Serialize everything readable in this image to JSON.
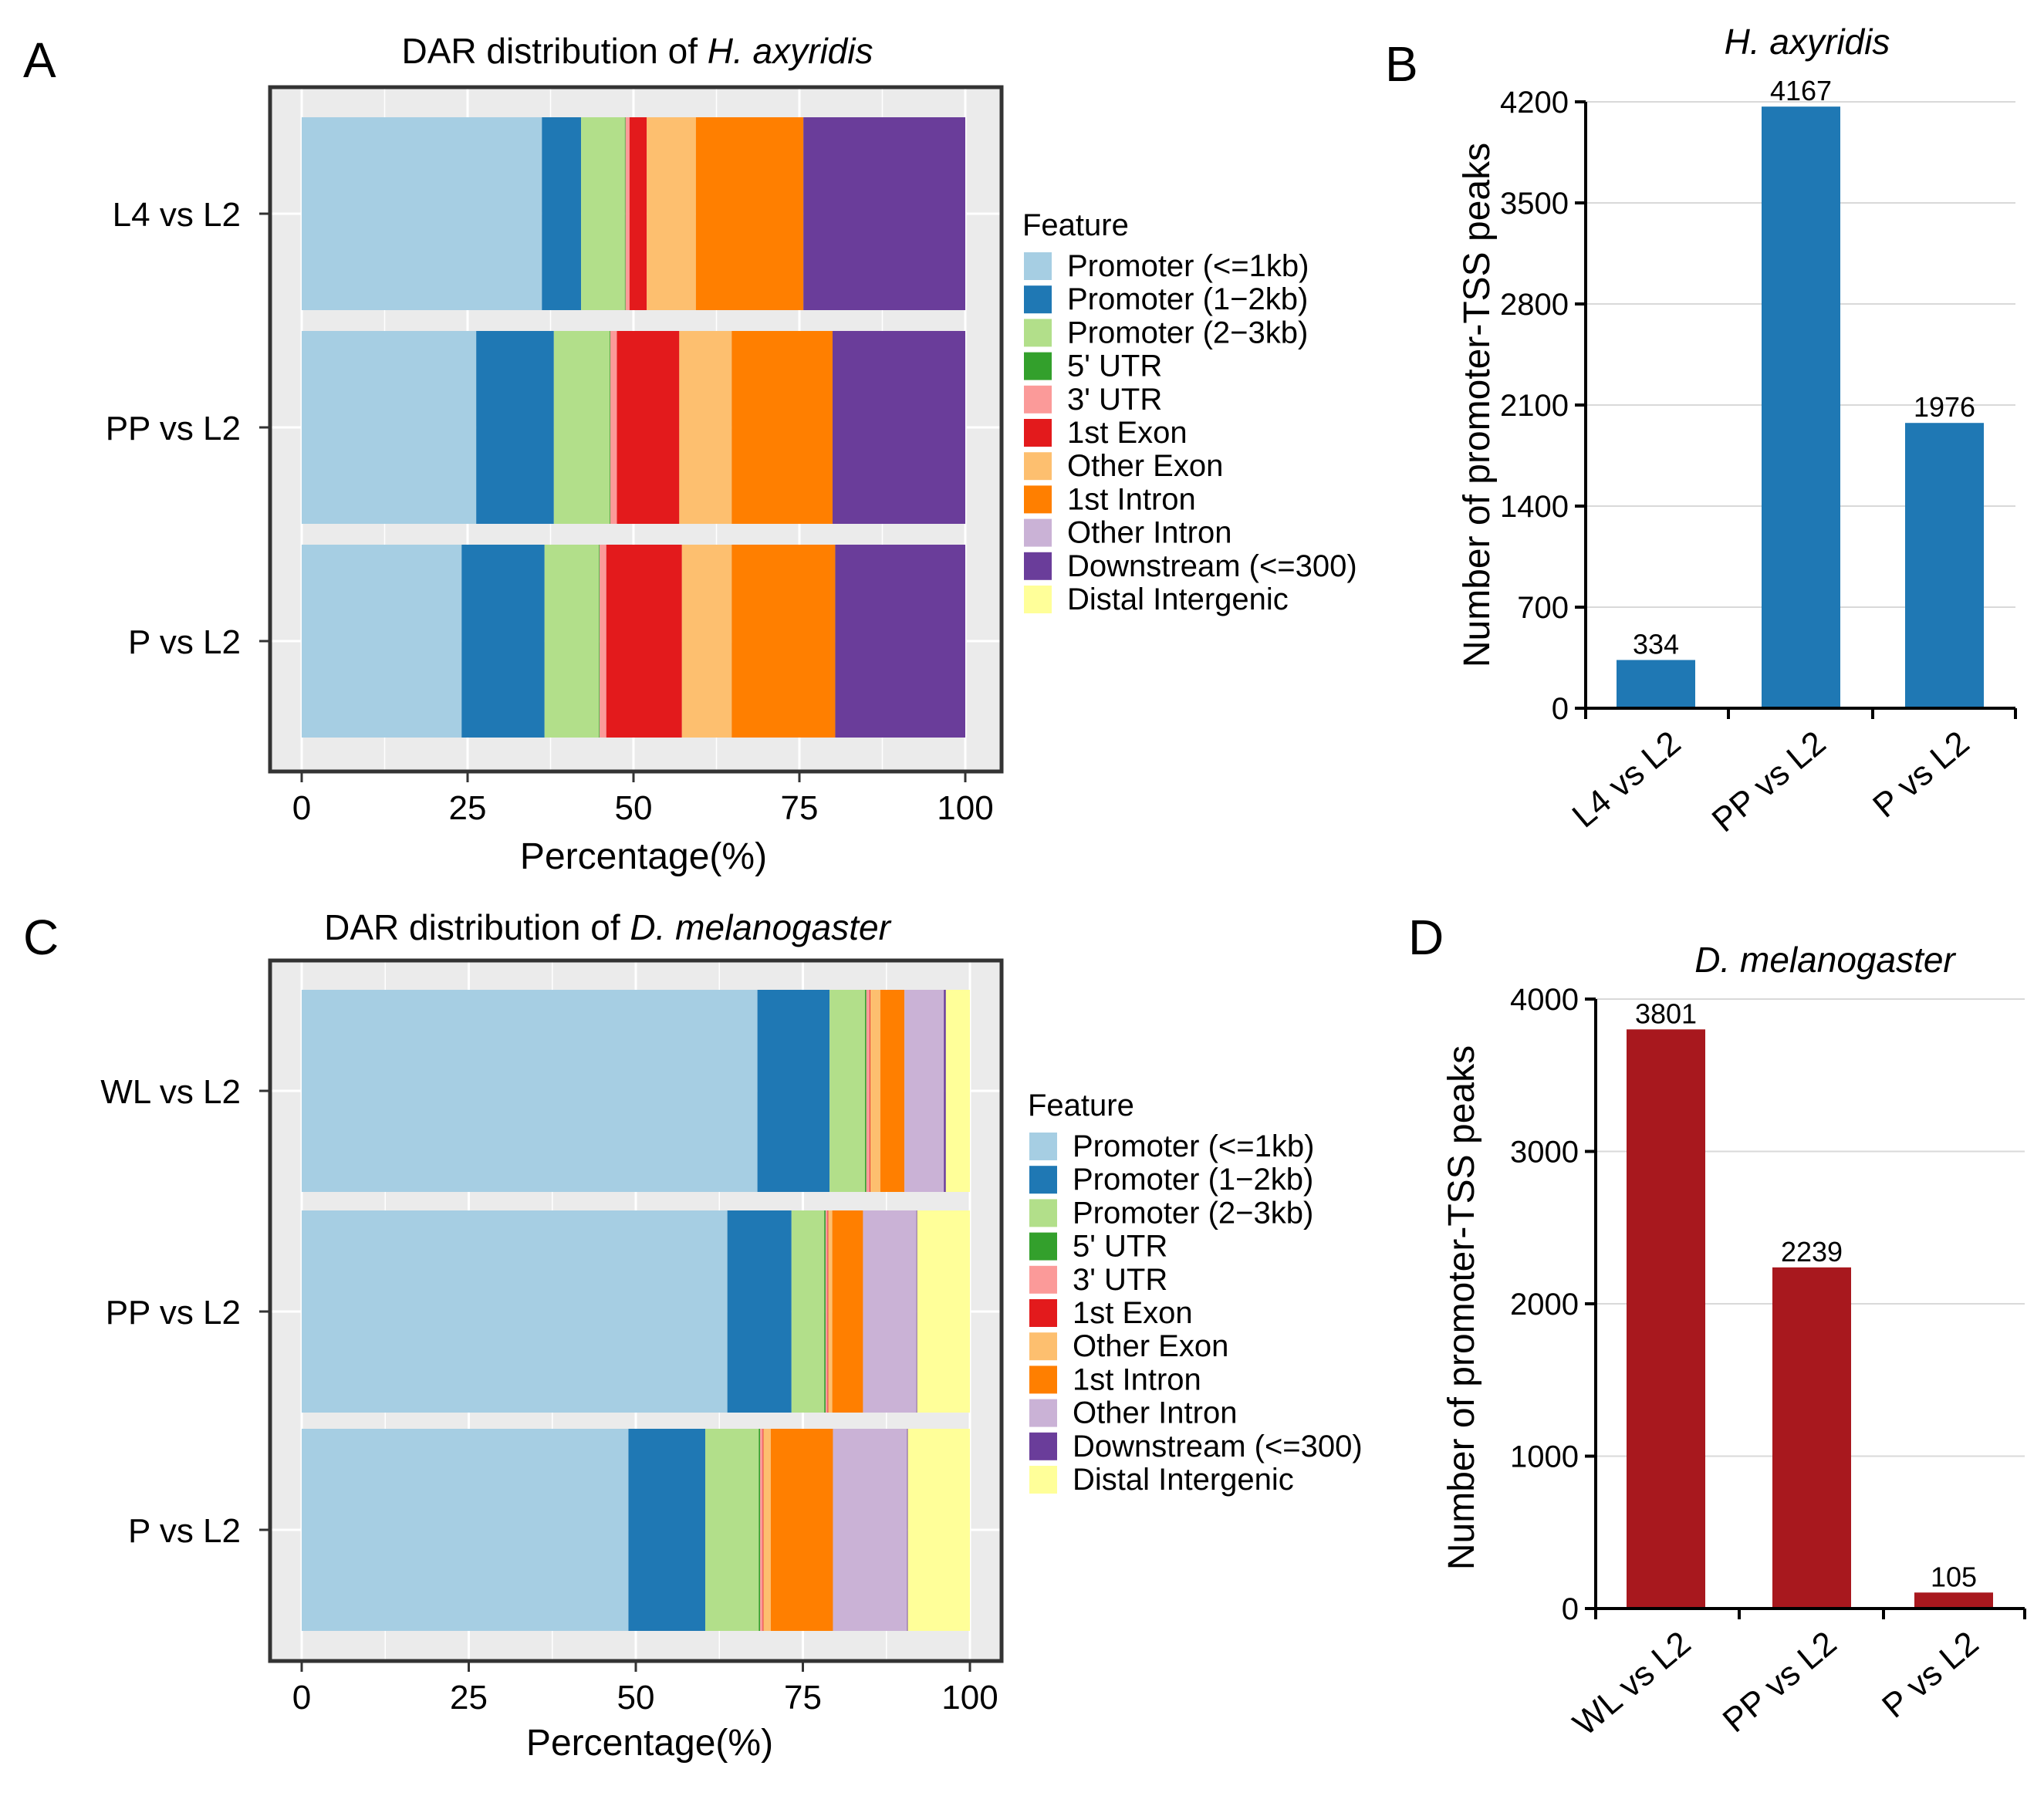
{
  "chart_data": [
    {
      "panel": "A",
      "type": "bar",
      "orientation": "horizontal",
      "stacked": true,
      "title_prefix": "DAR distribution of ",
      "title_species": "H. axyridis",
      "xlabel": "Percentage(%)",
      "xlim": [
        0,
        100
      ],
      "xticks": [
        0,
        25,
        50,
        75,
        100
      ],
      "categories": [
        "L4 vs L2",
        "PP vs L2",
        "P vs L2"
      ],
      "legend_title": "Feature",
      "series": [
        {
          "name": "Promoter (<=1kb)",
          "color": "#a6cee3",
          "values": [
            36.2,
            26.3,
            24.1
          ]
        },
        {
          "name": "Promoter (1−2kb)",
          "color": "#1f78b4",
          "values": [
            5.9,
            11.7,
            12.5
          ]
        },
        {
          "name": "Promoter (2−3kb)",
          "color": "#b2df8a",
          "values": [
            6.6,
            8.4,
            8.2
          ]
        },
        {
          "name": "5' UTR",
          "color": "#33a02c",
          "values": [
            0.1,
            0.1,
            0.1
          ]
        },
        {
          "name": "3' UTR",
          "color": "#fb9a99",
          "values": [
            0.6,
            1.0,
            1.0
          ]
        },
        {
          "name": "1st Exon",
          "color": "#e31a1c",
          "values": [
            2.6,
            9.4,
            11.4
          ]
        },
        {
          "name": "Other Exon",
          "color": "#fdbf6f",
          "values": [
            7.4,
            7.9,
            7.5
          ]
        },
        {
          "name": "1st Intron",
          "color": "#ff7f00",
          "values": [
            16.2,
            15.2,
            15.6
          ]
        },
        {
          "name": "Other Intron",
          "color": "#cab2d6",
          "values": [
            0.0,
            0.0,
            0.0
          ]
        },
        {
          "name": "Downstream (<=300)",
          "color": "#6a3d9a",
          "values": [
            24.4,
            20.0,
            19.6
          ]
        },
        {
          "name": "Distal Intergenic",
          "color": "#ffff99",
          "values": [
            0.0,
            0.0,
            0.0
          ]
        }
      ]
    },
    {
      "panel": "B",
      "type": "bar",
      "title_species": "H. axyridis",
      "ylabel": "Number of promoter-TSS peaks",
      "ylim": [
        0,
        4200
      ],
      "yticks": [
        0,
        700,
        1400,
        2100,
        2800,
        3500,
        4200
      ],
      "categories": [
        "L4 vs L2",
        "PP vs L2",
        "P vs L2"
      ],
      "values": [
        334,
        4167,
        1976
      ],
      "color": "#1f78b4"
    },
    {
      "panel": "C",
      "type": "bar",
      "orientation": "horizontal",
      "stacked": true,
      "title_prefix": "DAR distribution of ",
      "title_species": "D. melanogaster",
      "xlabel": "Percentage(%)",
      "xlim": [
        0,
        100
      ],
      "xticks": [
        0,
        25,
        50,
        75,
        100
      ],
      "categories": [
        "WL vs L2",
        "PP vs L2",
        "P vs L2"
      ],
      "legend_title": "Feature",
      "series": [
        {
          "name": "Promoter (<=1kb)",
          "color": "#a6cee3",
          "values": [
            68.2,
            63.7,
            48.9
          ]
        },
        {
          "name": "Promoter (1−2kb)",
          "color": "#1f78b4",
          "values": [
            10.8,
            9.6,
            11.5
          ]
        },
        {
          "name": "Promoter (2−3kb)",
          "color": "#b2df8a",
          "values": [
            5.3,
            4.9,
            8.0
          ]
        },
        {
          "name": "5' UTR",
          "color": "#33a02c",
          "values": [
            0.2,
            0.2,
            0.2
          ]
        },
        {
          "name": "3' UTR",
          "color": "#fb9a99",
          "values": [
            0.5,
            0.3,
            0.4
          ]
        },
        {
          "name": "1st Exon",
          "color": "#e31a1c",
          "values": [
            0.1,
            0.1,
            0.1
          ]
        },
        {
          "name": "Other Exon",
          "color": "#fdbf6f",
          "values": [
            1.5,
            0.6,
            1.1
          ]
        },
        {
          "name": "1st Intron",
          "color": "#ff7f00",
          "values": [
            3.6,
            4.6,
            9.3
          ]
        },
        {
          "name": "Other Intron",
          "color": "#cab2d6",
          "values": [
            5.9,
            8.0,
            11.1
          ]
        },
        {
          "name": "Downstream (<=300)",
          "color": "#6a3d9a",
          "values": [
            0.3,
            0.1,
            0.1
          ]
        },
        {
          "name": "Distal Intergenic",
          "color": "#ffff99",
          "values": [
            3.6,
            7.9,
            9.3
          ]
        }
      ]
    },
    {
      "panel": "D",
      "type": "bar",
      "title_species": "D. melanogaster",
      "ylabel": "Number of promoter-TSS peaks",
      "ylim": [
        0,
        4000
      ],
      "yticks": [
        0,
        1000,
        2000,
        3000,
        4000
      ],
      "categories": [
        "WL vs L2",
        "PP vs L2",
        "P vs L2"
      ],
      "values": [
        3801,
        2239,
        105
      ],
      "color": "#a8181e"
    }
  ]
}
